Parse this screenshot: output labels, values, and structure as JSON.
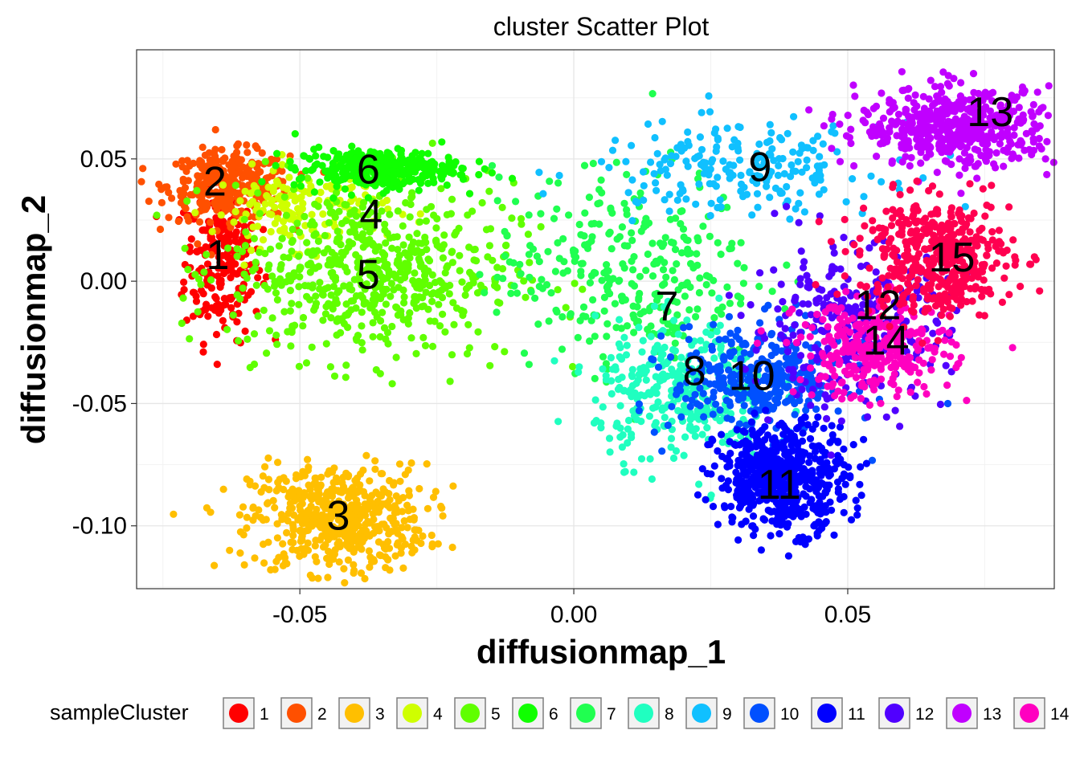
{
  "chart_data": {
    "type": "scatter",
    "title": "cluster Scatter Plot",
    "xlabel": "diffusionmap_1",
    "ylabel": "diffusionmap_2",
    "xlim": [
      -0.0798,
      0.0877
    ],
    "ylim": [
      -0.1257,
      0.0946
    ],
    "x_ticks": [
      -0.05,
      0.0,
      0.05
    ],
    "x_tick_labels": [
      "-0.05",
      "0.00",
      "0.05"
    ],
    "y_ticks": [
      -0.1,
      -0.05,
      0.0,
      0.05
    ],
    "y_tick_labels": [
      "-0.10",
      "-0.05",
      "0.00",
      "0.05"
    ],
    "grid": true,
    "legend_title": "sampleCluster",
    "legend_position": "bottom",
    "clusters": [
      {
        "name": "1",
        "color": "#FF0000",
        "center": [
          -0.064,
          0.008
        ],
        "spread": [
          0.0035,
          0.016
        ],
        "n": 220
      },
      {
        "name": "2",
        "color": "#FF5000",
        "center": [
          -0.063,
          0.039
        ],
        "spread": [
          0.0055,
          0.007
        ],
        "n": 320
      },
      {
        "name": "3",
        "color": "#FFBF00",
        "center": [
          -0.043,
          -0.097
        ],
        "spread": [
          0.008,
          0.011
        ],
        "n": 560
      },
      {
        "name": "4",
        "color": "#CFFF00",
        "center": [
          -0.05,
          0.03
        ],
        "spread": [
          0.008,
          0.008
        ],
        "n": 160
      },
      {
        "name": "5",
        "color": "#60FF00",
        "center": [
          -0.037,
          0.004
        ],
        "spread": [
          0.013,
          0.018
        ],
        "n": 620
      },
      {
        "name": "6",
        "color": "#10FF00",
        "center": [
          -0.036,
          0.046
        ],
        "spread": [
          0.0075,
          0.004
        ],
        "n": 320
      },
      {
        "name": "7",
        "color": "#20FF50",
        "center": [
          0.01,
          0.005
        ],
        "spread": [
          0.012,
          0.02
        ],
        "n": 320
      },
      {
        "name": "8",
        "color": "#20FFC0",
        "center": [
          0.02,
          -0.045
        ],
        "spread": [
          0.008,
          0.014
        ],
        "n": 340
      },
      {
        "name": "9",
        "color": "#10C0FF",
        "center": [
          0.03,
          0.046
        ],
        "spread": [
          0.013,
          0.009
        ],
        "n": 220
      },
      {
        "name": "10",
        "color": "#0050FF",
        "center": [
          0.034,
          -0.04
        ],
        "spread": [
          0.008,
          0.011
        ],
        "n": 340
      },
      {
        "name": "11",
        "color": "#0000FF",
        "center": [
          0.038,
          -0.08
        ],
        "spread": [
          0.006,
          0.011
        ],
        "n": 560
      },
      {
        "name": "12",
        "color": "#5000FF",
        "center": [
          0.05,
          -0.018
        ],
        "spread": [
          0.009,
          0.016
        ],
        "n": 300
      },
      {
        "name": "13",
        "color": "#C000FF",
        "center": [
          0.07,
          0.063
        ],
        "spread": [
          0.009,
          0.008
        ],
        "n": 520
      },
      {
        "name": "14",
        "color": "#FF00C0",
        "center": [
          0.055,
          -0.028
        ],
        "spread": [
          0.007,
          0.01
        ],
        "n": 300
      },
      {
        "name": "15",
        "color": "#FF0050",
        "center": [
          0.066,
          0.01
        ],
        "spread": [
          0.007,
          0.012
        ],
        "n": 460
      }
    ],
    "cluster_labels": [
      {
        "text": "1",
        "x": -0.065,
        "y": 0.0095
      },
      {
        "text": "2",
        "x": -0.0655,
        "y": 0.0395
      },
      {
        "text": "3",
        "x": -0.043,
        "y": -0.097
      },
      {
        "text": "4",
        "x": -0.037,
        "y": 0.026
      },
      {
        "text": "5",
        "x": -0.0375,
        "y": 0.0015
      },
      {
        "text": "6",
        "x": -0.0375,
        "y": 0.0445
      },
      {
        "text": "7",
        "x": 0.017,
        "y": -0.0115
      },
      {
        "text": "8",
        "x": 0.022,
        "y": -0.038
      },
      {
        "text": "9",
        "x": 0.034,
        "y": 0.0455
      },
      {
        "text": "10",
        "x": 0.0325,
        "y": -0.04
      },
      {
        "text": "11",
        "x": 0.0375,
        "y": -0.0845
      },
      {
        "text": "12",
        "x": 0.0555,
        "y": -0.011
      },
      {
        "text": "13",
        "x": 0.076,
        "y": 0.068
      },
      {
        "text": "14",
        "x": 0.057,
        "y": -0.0255
      },
      {
        "text": "15",
        "x": 0.069,
        "y": 0.0085
      }
    ]
  }
}
